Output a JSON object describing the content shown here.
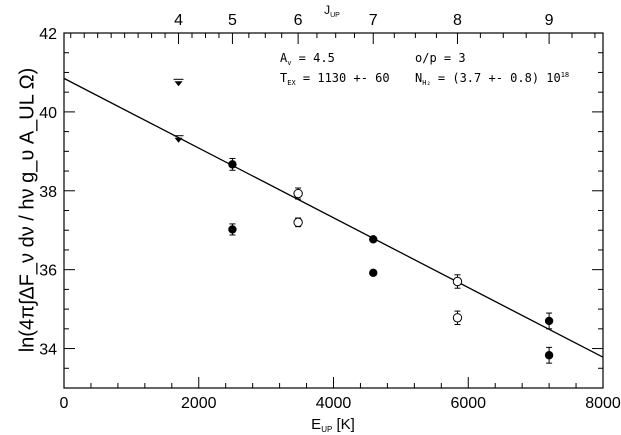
{
  "chart_data": {
    "type": "scatter",
    "xlabel": "E",
    "xlabel_sub": "UP",
    "xlabel_unit": "[K]",
    "ylabel": "ln(4π∫ΔF_ν dν / hν g_υ A_UL Ω)",
    "top_axis_label": "J",
    "top_axis_label_sub": "UP",
    "xlim": [
      0,
      8000
    ],
    "ylim": [
      33.0,
      42.0
    ],
    "x_ticks": [
      0,
      2000,
      4000,
      6000,
      8000
    ],
    "x_tick_labels": [
      "0",
      "2000",
      "4000",
      "6000",
      "8000"
    ],
    "y_ticks": [
      34,
      36,
      38,
      40,
      42
    ],
    "y_tick_labels": [
      "34",
      "36",
      "38",
      "40",
      "42"
    ],
    "top_ticks": [
      {
        "label": "4",
        "x": 1700
      },
      {
        "label": "5",
        "x": 2500
      },
      {
        "label": "6",
        "x": 3475
      },
      {
        "label": "7",
        "x": 4590
      },
      {
        "label": "8",
        "x": 5840
      },
      {
        "label": "9",
        "x": 7200
      }
    ],
    "series": [
      {
        "marker": "filled-circle",
        "points": [
          {
            "x": 2500,
            "y": 38.67,
            "err": 0.15
          },
          {
            "x": 2500,
            "y": 37.02,
            "err": 0.14
          },
          {
            "x": 4590,
            "y": 36.77,
            "err": 0.05
          },
          {
            "x": 4590,
            "y": 35.92,
            "err": 0.05
          },
          {
            "x": 7200,
            "y": 34.7,
            "err": 0.2
          },
          {
            "x": 7200,
            "y": 33.83,
            "err": 0.2
          }
        ]
      },
      {
        "marker": "open-circle",
        "points": [
          {
            "x": 3475,
            "y": 37.93,
            "err": 0.14
          },
          {
            "x": 3475,
            "y": 37.2,
            "err": 0.11
          },
          {
            "x": 5840,
            "y": 35.7,
            "err": 0.17
          },
          {
            "x": 5840,
            "y": 34.78,
            "err": 0.17
          }
        ]
      },
      {
        "marker": "upper-limit",
        "points": [
          {
            "x": 1700,
            "y": 40.75
          },
          {
            "x": 1700,
            "y": 39.32
          }
        ]
      }
    ],
    "fit_line": {
      "x": [
        0,
        8000
      ],
      "y": [
        40.85,
        33.78
      ]
    },
    "annotations": {
      "av": {
        "main": "A",
        "sub": "v",
        "value": " = 4.5"
      },
      "op": {
        "text": "o/p = 3"
      },
      "tex": {
        "main": "T",
        "sub": "EX",
        "value": " = 1130 +- 60"
      },
      "nh2": {
        "main": "N",
        "sub": "H₂",
        "value": " = (3.7 +- 0.8) 10",
        "sup": "18"
      }
    }
  }
}
